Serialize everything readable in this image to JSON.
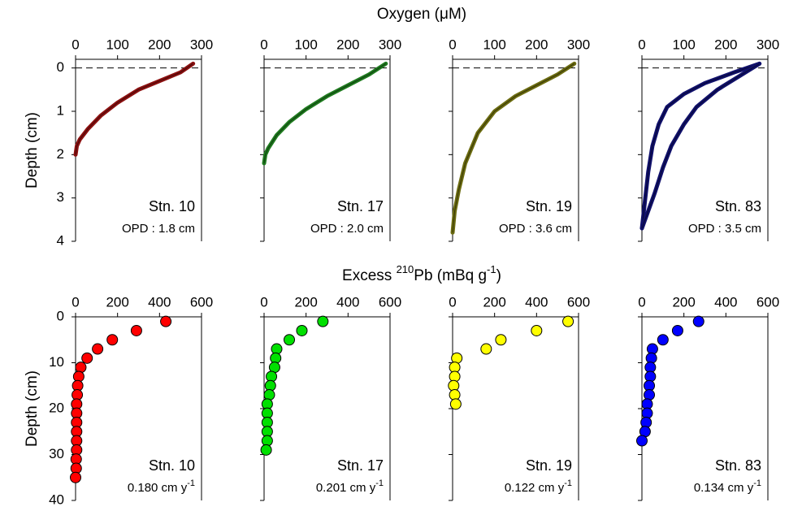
{
  "chart_data": [
    {
      "type": "line",
      "title": "Oxygen (μM)",
      "ylabel": "Depth (cm)",
      "label": "Stn. 10",
      "note": {
        "text": "OPD : 1.8 cm"
      },
      "xlim": [
        0,
        300
      ],
      "xticks": [
        0,
        100,
        200,
        300
      ],
      "ylim": [
        4,
        -0.2
      ],
      "yticks": [
        0,
        1,
        2,
        3,
        4
      ],
      "hline": 0,
      "series": [
        {
          "color": "#8b1010",
          "x": [
            280,
            250,
            200,
            150,
            100,
            60,
            30,
            10,
            3,
            0
          ],
          "y": [
            -0.1,
            0.1,
            0.3,
            0.5,
            0.8,
            1.1,
            1.4,
            1.65,
            1.8,
            2.0
          ]
        }
      ]
    },
    {
      "type": "line",
      "label": "Stn. 17",
      "note": {
        "text": "OPD : 2.0 cm"
      },
      "xlim": [
        0,
        300
      ],
      "xticks": [
        0,
        100,
        200,
        300
      ],
      "ylim": [
        4,
        -0.2
      ],
      "yticks": [
        0,
        1,
        2,
        3,
        4
      ],
      "hline": 0,
      "series": [
        {
          "color": "#1e7a1e",
          "x": [
            290,
            250,
            200,
            150,
            100,
            60,
            30,
            10,
            3,
            0
          ],
          "y": [
            -0.1,
            0.15,
            0.4,
            0.65,
            0.95,
            1.25,
            1.55,
            1.85,
            2.0,
            2.2
          ]
        }
      ]
    },
    {
      "type": "line",
      "label": "Stn. 19",
      "note": {
        "text": "OPD : 3.6 cm"
      },
      "xlim": [
        0,
        300
      ],
      "xticks": [
        0,
        100,
        200,
        300
      ],
      "ylim": [
        4,
        -0.2
      ],
      "yticks": [
        0,
        1,
        2,
        3,
        4
      ],
      "hline": 0,
      "series": [
        {
          "color": "#6b6b10",
          "x": [
            290,
            250,
            200,
            150,
            100,
            60,
            30,
            15,
            5,
            0
          ],
          "y": [
            -0.1,
            0.15,
            0.4,
            0.65,
            1.0,
            1.5,
            2.2,
            2.8,
            3.3,
            3.8
          ]
        }
      ]
    },
    {
      "type": "line",
      "label": "Stn. 83",
      "note": {
        "text": "OPD : 3.5 cm"
      },
      "xlim": [
        0,
        300
      ],
      "xticks": [
        0,
        100,
        200,
        300
      ],
      "ylim": [
        4,
        -0.2
      ],
      "yticks": [
        0,
        1,
        2,
        3,
        4
      ],
      "hline": 0,
      "series": [
        {
          "color": "#10106b",
          "x": [
            280,
            220,
            150,
            100,
            60,
            40,
            25,
            15,
            8,
            0
          ],
          "y": [
            -0.1,
            0.1,
            0.35,
            0.6,
            0.9,
            1.3,
            1.8,
            2.4,
            3.0,
            3.7
          ]
        },
        {
          "color": "#10106b",
          "x": [
            280,
            230,
            180,
            130,
            100,
            70,
            50,
            30,
            15,
            0
          ],
          "y": [
            -0.1,
            0.2,
            0.5,
            0.9,
            1.3,
            1.8,
            2.3,
            2.9,
            3.3,
            3.7
          ]
        }
      ]
    },
    {
      "type": "scatter",
      "title_parts": [
        {
          "text": "Excess "
        },
        {
          "text": "210",
          "sup": true
        },
        {
          "text": "Pb (mBq g"
        },
        {
          "text": "-1",
          "sup": true
        },
        {
          "text": ")"
        }
      ],
      "ylabel": "Depth (cm)",
      "label": "Stn. 10",
      "note": {
        "text": "0.180 cm y",
        "sup": "-1"
      },
      "xlim": [
        0,
        600
      ],
      "xticks": [
        0,
        200,
        400,
        600
      ],
      "ylim": [
        40,
        0
      ],
      "yticks": [
        0,
        10,
        20,
        30,
        40
      ],
      "series": [
        {
          "color": "#ff0000",
          "x": [
            430,
            290,
            175,
            105,
            55,
            25,
            15,
            10,
            8,
            5,
            5,
            5,
            5,
            5,
            5,
            3,
            3,
            0
          ],
          "y": [
            1,
            3,
            5,
            7,
            9,
            11,
            13,
            15,
            17,
            19,
            21,
            23,
            25,
            27,
            29,
            31,
            33,
            35
          ]
        }
      ]
    },
    {
      "type": "scatter",
      "label": "Stn. 17",
      "note": {
        "text": "0.201 cm y",
        "sup": "-1"
      },
      "xlim": [
        0,
        600
      ],
      "xticks": [
        0,
        200,
        400,
        600
      ],
      "ylim": [
        40,
        0
      ],
      "yticks": [
        0,
        10,
        20,
        30,
        40
      ],
      "series": [
        {
          "color": "#00e000",
          "x": [
            280,
            180,
            120,
            60,
            55,
            50,
            35,
            30,
            25,
            15,
            15,
            15,
            15,
            15,
            10
          ],
          "y": [
            1,
            3,
            5,
            7,
            9,
            11,
            13,
            15,
            17,
            19,
            21,
            23,
            25,
            27,
            29
          ]
        }
      ]
    },
    {
      "type": "scatter",
      "label": "Stn. 19",
      "note": {
        "text": "0.122 cm y",
        "sup": "-1"
      },
      "xlim": [
        0,
        600
      ],
      "xticks": [
        0,
        200,
        400,
        600
      ],
      "ylim": [
        40,
        0
      ],
      "yticks": [
        0,
        10,
        20,
        30,
        40
      ],
      "series": [
        {
          "color": "#ffff00",
          "x": [
            550,
            400,
            230,
            160,
            20,
            10,
            10,
            5,
            10,
            15
          ],
          "y": [
            1,
            3,
            5,
            7,
            9,
            11,
            13,
            15,
            17,
            19
          ]
        }
      ]
    },
    {
      "type": "scatter",
      "label": "Stn. 83",
      "note": {
        "text": "0.134 cm y",
        "sup": "-1"
      },
      "xlim": [
        0,
        600
      ],
      "xticks": [
        0,
        200,
        400,
        600
      ],
      "ylim": [
        40,
        0
      ],
      "yticks": [
        0,
        10,
        20,
        30,
        40
      ],
      "series": [
        {
          "color": "#0000ff",
          "x": [
            270,
            170,
            100,
            50,
            45,
            40,
            40,
            35,
            35,
            25,
            25,
            20,
            15,
            0
          ],
          "y": [
            1,
            3,
            5,
            7,
            9,
            11,
            13,
            15,
            17,
            19,
            21,
            23,
            25,
            27
          ]
        }
      ]
    }
  ]
}
